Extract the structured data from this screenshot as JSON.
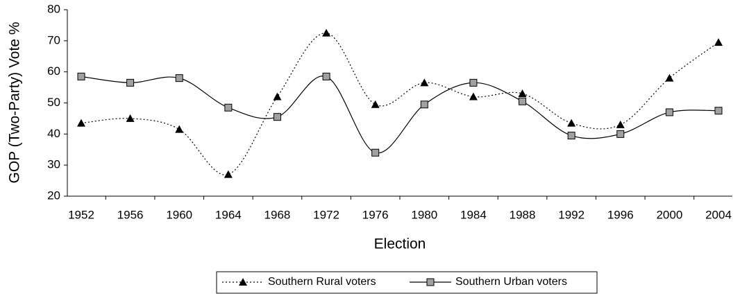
{
  "chart_data": {
    "type": "line",
    "x_label": "Election",
    "y_label": "GOP (Two-Party) Vote %",
    "categories": [
      "1952",
      "1956",
      "1960",
      "1964",
      "1968",
      "1972",
      "1976",
      "1980",
      "1984",
      "1988",
      "1992",
      "1996",
      "2000",
      "2004"
    ],
    "series": [
      {
        "name": "Southern Rural voters",
        "color": "#000000",
        "marker": "triangle",
        "dash": "dotted",
        "values": [
          43.5,
          45,
          41.5,
          27,
          52,
          72.5,
          49.5,
          56.5,
          52,
          53,
          43.5,
          43,
          58,
          69.5
        ]
      },
      {
        "name": "Southern Urban voters",
        "color": "#000000",
        "marker": "square",
        "marker_color": "#a0a0a0",
        "dash": "solid",
        "values": [
          58.5,
          56.5,
          58,
          48.5,
          45.5,
          58.5,
          34,
          49.5,
          56.5,
          50.5,
          39.5,
          40,
          47,
          47.5
        ]
      }
    ],
    "ylim": [
      20,
      80
    ],
    "yticks": [
      20,
      30,
      40,
      50,
      60,
      70,
      80
    ],
    "legend": "bottom",
    "grid": false
  }
}
